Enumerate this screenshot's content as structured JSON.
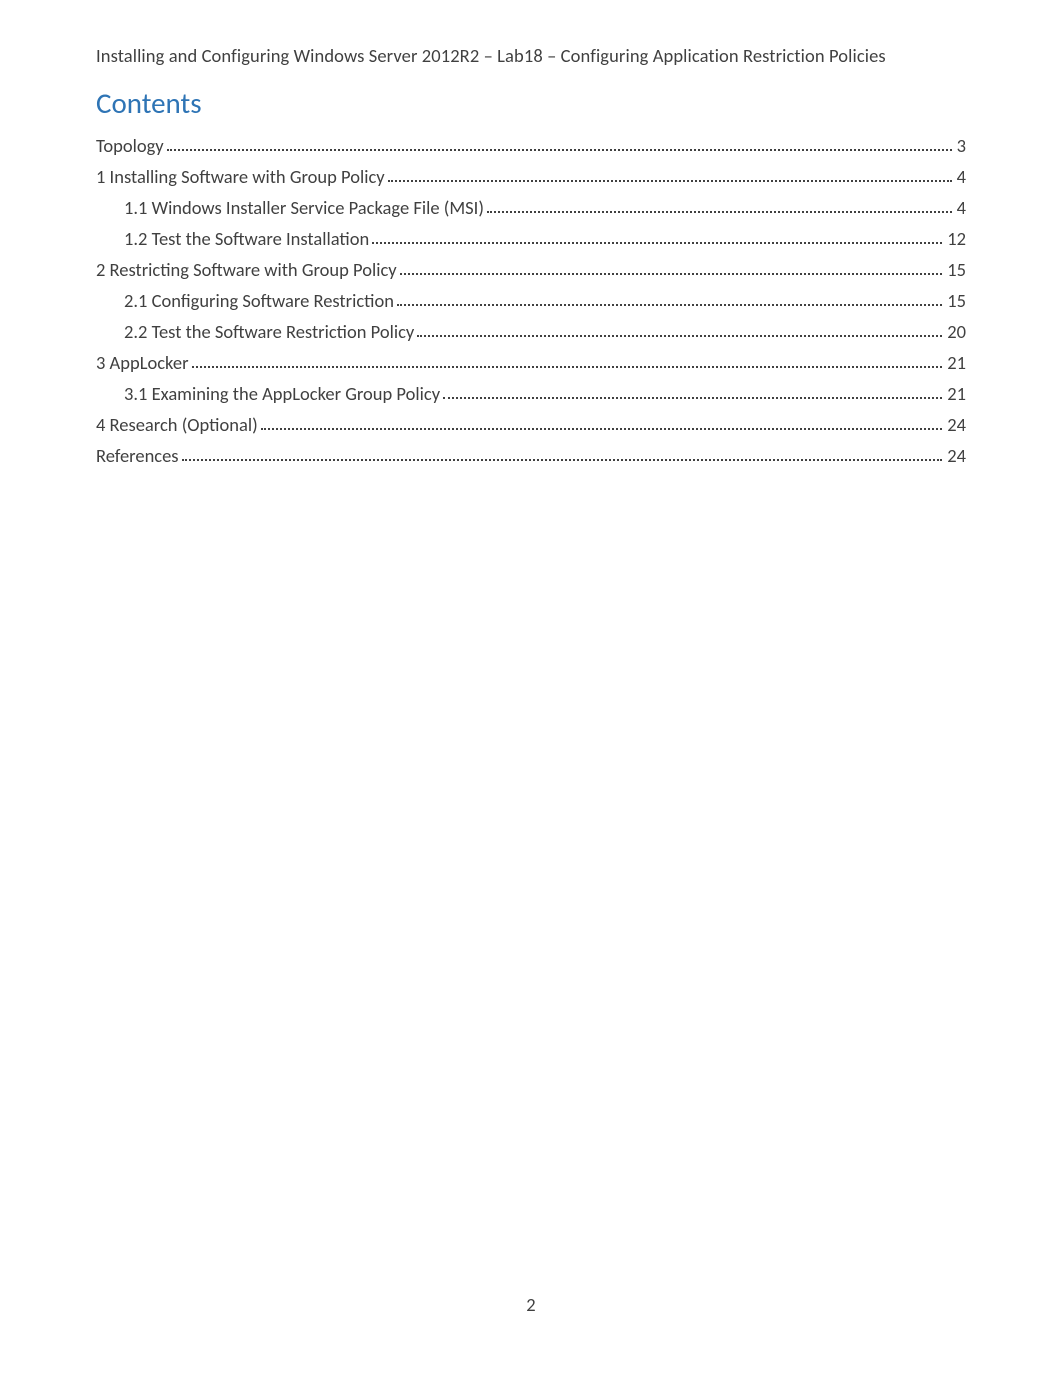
{
  "header": {
    "title": "Installing and Configuring Windows Server 2012R2 – Lab18 – Configuring Application Restriction Policies"
  },
  "contents_heading": "Contents",
  "toc": [
    {
      "label": "Topology",
      "page": "3",
      "indent": 0
    },
    {
      "label": "1 Installing Software with Group Policy",
      "page": "4",
      "indent": 0
    },
    {
      "label": "1.1 Windows Installer Service Package File (MSI)",
      "page": "4",
      "indent": 1
    },
    {
      "label": "1.2 Test the Software Installation",
      "page": "12",
      "indent": 1
    },
    {
      "label": "2 Restricting Software with Group Policy",
      "page": "15",
      "indent": 0
    },
    {
      "label": "2.1 Configuring Software Restriction",
      "page": "15",
      "indent": 1
    },
    {
      "label": "2.2 Test the Software Restriction Policy",
      "page": "20",
      "indent": 1
    },
    {
      "label": "3 AppLocker",
      "page": "21",
      "indent": 0
    },
    {
      "label": "3.1 Examining the AppLocker Group Policy",
      "page": "21",
      "indent": 1
    },
    {
      "label": "4 Research (Optional)",
      "page": "24",
      "indent": 0
    },
    {
      "label": "References",
      "page": "24",
      "indent": 0
    }
  ],
  "page_number": "2",
  "colors": {
    "heading_color": "#2e74b5",
    "text_color": "#404040",
    "background": "#ffffff"
  },
  "typography": {
    "body_fontsize_pt": 11,
    "heading_fontsize_pt": 18,
    "font_family": "Calibri"
  }
}
